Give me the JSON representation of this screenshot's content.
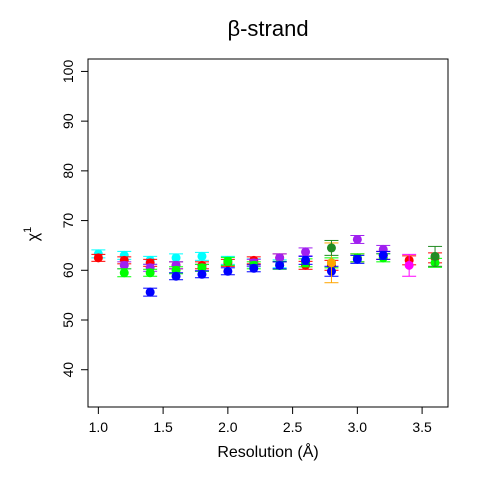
{
  "chart_data": {
    "type": "scatter",
    "title": "β-strand",
    "xlabel": "Resolution (Å)",
    "ylabel": "χ",
    "ylabel_sup": "1",
    "xlim": [
      0.92,
      3.7
    ],
    "ylim": [
      32.5,
      102.5
    ],
    "x_ticks": [
      "1.0",
      "1.5",
      "2.0",
      "2.5",
      "3.0",
      "3.5"
    ],
    "y_ticks": [
      "40",
      "50",
      "60",
      "70",
      "80",
      "90",
      "100"
    ],
    "grid": false,
    "legend": "none",
    "error_bars": true,
    "series": [
      {
        "color": "#00ffff",
        "x": [
          1.0,
          1.2,
          1.4,
          1.6,
          1.8,
          2.0,
          2.2,
          2.4
        ],
        "y": [
          63.3,
          63.0,
          62.0,
          62.5,
          62.8,
          62.0,
          61.5,
          61.3
        ],
        "err": [
          0.8,
          0.8,
          0.8,
          0.8,
          0.8,
          0.8,
          0.8,
          0.8
        ]
      },
      {
        "color": "#ff0000",
        "x": [
          1.0,
          1.2,
          1.4,
          1.6,
          1.8,
          2.0,
          2.2,
          2.4,
          2.6,
          2.8,
          3.0,
          3.2,
          3.4,
          3.6
        ],
        "y": [
          62.5,
          62.0,
          61.5,
          61.0,
          61.0,
          61.5,
          62.0,
          62.5,
          61.0,
          61.0,
          62.5,
          63.0,
          62.0,
          62.5
        ],
        "err": [
          0.7,
          0.7,
          0.7,
          0.7,
          0.7,
          0.7,
          0.7,
          0.8,
          0.8,
          1.0,
          0.8,
          0.8,
          0.9,
          1.0
        ]
      },
      {
        "color": "#a020f0",
        "x": [
          1.2,
          1.4,
          1.6,
          1.8,
          2.2,
          2.4,
          2.6,
          3.0,
          3.2
        ],
        "y": [
          61.0,
          60.5,
          61.0,
          60.5,
          61.5,
          62.5,
          63.7,
          66.2,
          64.2
        ],
        "err": [
          0.7,
          0.7,
          0.7,
          0.7,
          0.7,
          0.8,
          0.8,
          0.8,
          0.8
        ]
      },
      {
        "color": "#00ff00",
        "x": [
          1.2,
          1.4,
          1.6,
          1.8,
          2.0,
          2.2,
          2.4,
          2.6,
          2.8,
          3.0,
          3.2,
          3.6
        ],
        "y": [
          59.5,
          59.5,
          60.0,
          60.5,
          61.8,
          61.0,
          61.0,
          61.5,
          61.5,
          62.5,
          62.5,
          61.5
        ],
        "err": [
          0.8,
          0.7,
          0.7,
          0.7,
          0.8,
          0.7,
          0.8,
          0.8,
          1.0,
          0.8,
          0.8,
          0.9
        ]
      },
      {
        "color": "#0000ff",
        "x": [
          1.4,
          1.6,
          1.8,
          2.0,
          2.2,
          2.4,
          2.6,
          2.8,
          3.0,
          3.2
        ],
        "y": [
          55.6,
          58.8,
          59.2,
          59.8,
          60.4,
          61.0,
          62.0,
          59.8,
          62.2,
          63.0
        ],
        "err": [
          0.8,
          0.7,
          0.7,
          0.7,
          0.7,
          0.7,
          0.8,
          1.0,
          0.8,
          0.8
        ]
      },
      {
        "color": "#ff00ff",
        "x": [
          3.4
        ],
        "y": [
          61.0
        ],
        "err": [
          2.2
        ]
      },
      {
        "color": "#ffa500",
        "x": [
          2.8
        ],
        "y": [
          61.5
        ],
        "err": [
          4.0
        ]
      },
      {
        "color": "#228b22",
        "x": [
          2.8,
          3.6
        ],
        "y": [
          64.5,
          62.8
        ],
        "err": [
          1.5,
          2.0
        ]
      }
    ]
  }
}
